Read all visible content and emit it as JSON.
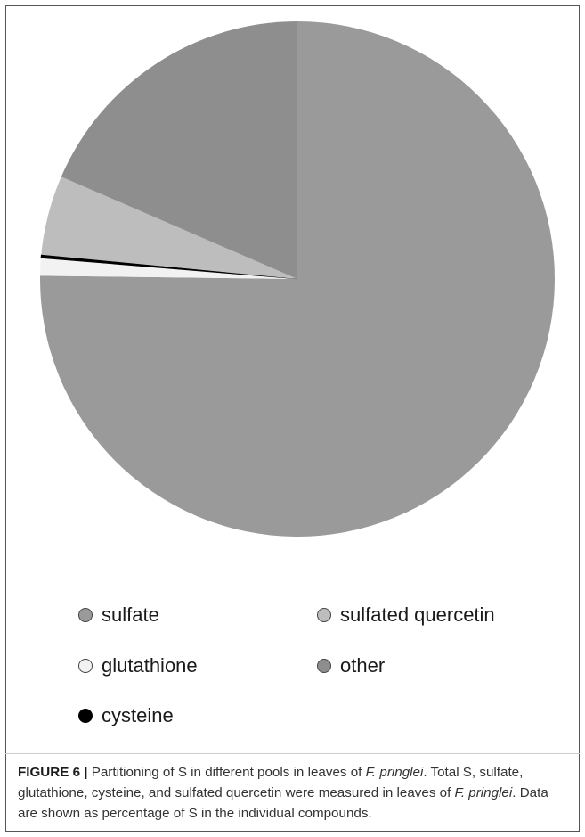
{
  "chart_data": {
    "type": "pie",
    "title": "",
    "slices": [
      {
        "name": "sulfate",
        "value": 75.2,
        "color": "#9a9a9a"
      },
      {
        "name": "glutathione",
        "value": 1.1,
        "color": "#f2f2f2"
      },
      {
        "name": "cysteine",
        "value": 0.2,
        "color": "#000000"
      },
      {
        "name": "sulfated quercetin",
        "value": 5.0,
        "color": "#bdbdbd"
      },
      {
        "name": "other",
        "value": 18.5,
        "color": "#8e8e8e"
      }
    ],
    "legend": {
      "placement": "bottom",
      "entries": [
        {
          "label": "sulfate",
          "color": "#9a9a9a"
        },
        {
          "label": "sulfated quercetin",
          "color": "#bdbdbd"
        },
        {
          "label": "glutathione",
          "color": "#f2f2f2"
        },
        {
          "label": "other",
          "color": "#8e8e8e"
        },
        {
          "label": "cysteine",
          "color": "#000000"
        }
      ]
    }
  },
  "caption": {
    "label": "FIGURE 6 |",
    "parts": [
      {
        "text": " Partitioning of S in different pools in leaves of ",
        "italic": false
      },
      {
        "text": "F. pringlei",
        "italic": true
      },
      {
        "text": ". Total S, sulfate, glutathione, cysteine, and sulfated quercetin were measured in leaves of ",
        "italic": false
      },
      {
        "text": "F. pringlei",
        "italic": true
      },
      {
        "text": ". Data are shown as percentage of S in the individual compounds.",
        "italic": false
      }
    ]
  }
}
